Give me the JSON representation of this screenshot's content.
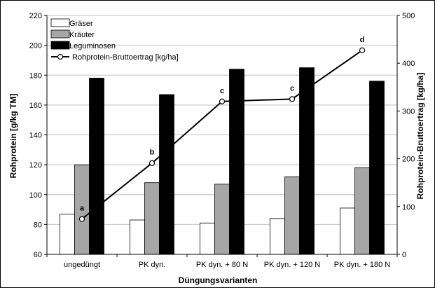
{
  "chart_data": {
    "type": "bar",
    "categories": [
      "ungedüngt",
      "PK dyn.",
      "PK dyn. + 80 N",
      "PK dyn. + 120 N",
      "PK dyn. + 180 N"
    ],
    "series": [
      {
        "name": "Gräser",
        "values": [
          87,
          83,
          81,
          84,
          91
        ],
        "color": "#ffffff"
      },
      {
        "name": "Kräuter",
        "values": [
          120,
          108,
          107,
          112,
          118
        ],
        "color": "#a6a6a6"
      },
      {
        "name": "Leguminosen",
        "values": [
          178,
          167,
          184,
          185,
          176
        ],
        "color": "#000000"
      }
    ],
    "line_series": {
      "name": "Rohprotein-Bruttoertrag [kg/ha]",
      "axis": "right",
      "values": [
        74,
        191,
        320,
        325,
        427
      ],
      "labels": [
        "a",
        "b",
        "c",
        "c",
        "d"
      ],
      "color": "#000000"
    },
    "xlabel": "Düngungsvarianten",
    "ylabel": "Rohprotein [g/kg TM]",
    "y2label": "Rohprotein-Bruttoertrag [kg/ha]",
    "ylim": [
      60,
      220
    ],
    "yticks": [
      60,
      80,
      100,
      120,
      140,
      160,
      180,
      200,
      220
    ],
    "y2lim": [
      0,
      500
    ],
    "y2ticks": [
      0,
      100,
      200,
      300,
      400,
      500
    ],
    "grid": true,
    "legend": "top-left"
  }
}
